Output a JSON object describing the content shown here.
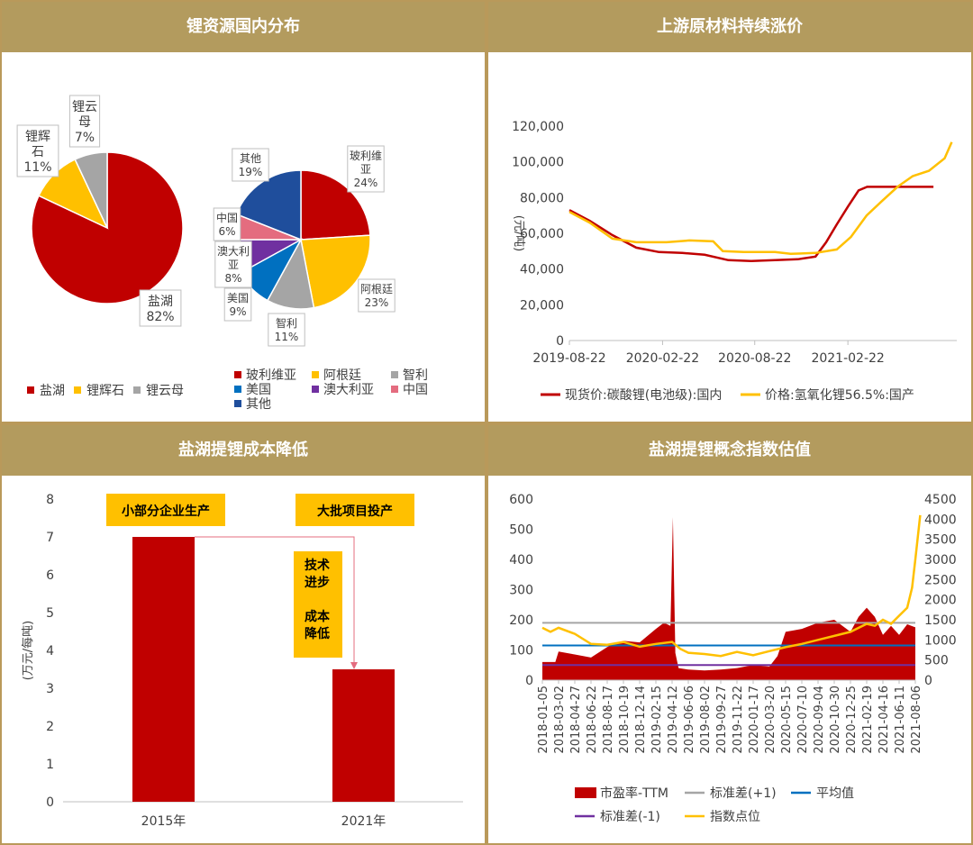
{
  "panels": {
    "p1_title": "锂资源国内分布",
    "p2_title": "上游原材料持续涨价",
    "p3_title": "盐湖提锂成本降低",
    "p4_title": "盐湖提锂概念指数估值"
  },
  "colors": {
    "header_bg": "#b39b5e",
    "red": "#c00000",
    "yellow": "#ffc000",
    "gray": "#a5a5a5",
    "blue": "#0070c0",
    "purple": "#7030a0",
    "pink": "#e46c7f",
    "navy": "#1f4e9c"
  },
  "chart_data": [
    {
      "type": "pie",
      "slices": [
        {
          "label": "盐湖",
          "value": 82,
          "pct": "82%"
        },
        {
          "label": "锂辉石",
          "value": 11,
          "pct": "11%"
        },
        {
          "label": "锂云母",
          "value": 7,
          "pct": "7%"
        }
      ],
      "legend": [
        "盐湖",
        "锂辉石",
        "锂云母"
      ]
    },
    {
      "type": "pie",
      "slices": [
        {
          "label": "玻利维亚",
          "value": 24,
          "pct": "24%"
        },
        {
          "label": "阿根廷",
          "value": 23,
          "pct": "23%"
        },
        {
          "label": "智利",
          "value": 11,
          "pct": "11%"
        },
        {
          "label": "美国",
          "value": 9,
          "pct": "9%"
        },
        {
          "label": "澳大利亚",
          "value": 8,
          "pct": "8%"
        },
        {
          "label": "中国",
          "value": 6,
          "pct": "6%"
        },
        {
          "label": "其他",
          "value": 19,
          "pct": "19%"
        }
      ],
      "legend": [
        "玻利维亚",
        "阿根廷",
        "智利",
        "美国",
        "澳大利亚",
        "中国",
        "其他"
      ]
    },
    {
      "type": "line",
      "ylabel": "(元/吨)",
      "ylim": [
        0,
        120000
      ],
      "yticks": [
        "0",
        "20,000",
        "40,000",
        "60,000",
        "80,000",
        "100,000",
        "120,000"
      ],
      "xticks": [
        "2019-08-22",
        "2020-02-22",
        "2020-08-22",
        "2021-02-22"
      ],
      "series": [
        {
          "name": "现货价:碳酸锂(电池级):国内",
          "points": [
            [
              "2019-08-22",
              73000
            ],
            [
              "2019-10-01",
              67000
            ],
            [
              "2019-11-15",
              59000
            ],
            [
              "2020-01-01",
              52000
            ],
            [
              "2020-02-15",
              49500
            ],
            [
              "2020-04-01",
              49000
            ],
            [
              "2020-05-15",
              48000
            ],
            [
              "2020-07-01",
              45000
            ],
            [
              "2020-08-15",
              44500
            ],
            [
              "2020-10-01",
              45000
            ],
            [
              "2020-11-15",
              45500
            ],
            [
              "2020-12-20",
              47000
            ],
            [
              "2021-01-10",
              55000
            ],
            [
              "2021-01-31",
              65000
            ],
            [
              "2021-02-22",
              75000
            ],
            [
              "2021-03-15",
              84000
            ],
            [
              "2021-04-01",
              86000
            ],
            [
              "2021-05-15",
              86000
            ],
            [
              "2021-06-30",
              86000
            ],
            [
              "2021-08-10",
              86000
            ]
          ]
        },
        {
          "name": "价格:氢氧化锂56.5%:国产",
          "points": [
            [
              "2019-08-22",
              72000
            ],
            [
              "2019-10-01",
              66000
            ],
            [
              "2019-11-15",
              57000
            ],
            [
              "2020-01-01",
              55000
            ],
            [
              "2020-03-01",
              55000
            ],
            [
              "2020-04-15",
              56000
            ],
            [
              "2020-06-01",
              55500
            ],
            [
              "2020-06-20",
              50000
            ],
            [
              "2020-08-01",
              49500
            ],
            [
              "2020-10-01",
              49500
            ],
            [
              "2020-11-01",
              48500
            ],
            [
              "2020-12-20",
              49000
            ],
            [
              "2021-01-31",
              51000
            ],
            [
              "2021-02-28",
              58000
            ],
            [
              "2021-03-31",
              70000
            ],
            [
              "2021-04-30",
              78000
            ],
            [
              "2021-05-31",
              86000
            ],
            [
              "2021-06-30",
              92000
            ],
            [
              "2021-08-01",
              95000
            ],
            [
              "2021-09-01",
              102000
            ],
            [
              "2021-09-15",
              111000
            ]
          ]
        }
      ],
      "legend": [
        "现货价:碳酸锂(电池级):国内",
        "价格:氢氧化锂56.5%:国产"
      ]
    },
    {
      "type": "bar",
      "ylabel": "(万元/每吨)",
      "ylim": [
        0,
        8
      ],
      "categories": [
        "2015年",
        "2021年"
      ],
      "values": [
        7,
        3.5
      ],
      "yticks": [
        "0",
        "1",
        "2",
        "3",
        "4",
        "5",
        "6",
        "7",
        "8"
      ],
      "annotations": [
        "小部分企业生产",
        "大批项目投产",
        "技术\n进步\n\n成本\n降低"
      ]
    },
    {
      "type": "area",
      "y1lim": [
        0,
        600
      ],
      "y2lim": [
        0,
        4500
      ],
      "y1ticks": [
        "0",
        "100",
        "200",
        "300",
        "400",
        "500",
        "600"
      ],
      "y2ticks": [
        "0",
        "500",
        "1000",
        "1500",
        "2000",
        "2500",
        "3000",
        "3500",
        "4000",
        "4500"
      ],
      "xticks": [
        "2018-01-05",
        "2018-03-02",
        "2018-04-27",
        "2018-06-22",
        "2018-08-17",
        "2018-10-19",
        "2018-12-14",
        "2019-02-15",
        "2019-04-12",
        "2019-06-06",
        "2019-08-02",
        "2019-09-27",
        "2019-11-22",
        "2020-01-17",
        "2020-03-20",
        "2020-05-15",
        "2020-07-10",
        "2020-09-04",
        "2020-10-30",
        "2020-12-25",
        "2021-02-19",
        "2021-04-16",
        "2021-06-11",
        "2021-08-06"
      ],
      "pe_ttm": [
        [
          0,
          60
        ],
        [
          0.8,
          60
        ],
        [
          1,
          95
        ],
        [
          2,
          85
        ],
        [
          3,
          75
        ],
        [
          4,
          110
        ],
        [
          5,
          130
        ],
        [
          6,
          125
        ],
        [
          7,
          170
        ],
        [
          7.5,
          190
        ],
        [
          7.9,
          180
        ],
        [
          8.05,
          540
        ],
        [
          8.2,
          90
        ],
        [
          8.4,
          40
        ],
        [
          9,
          35
        ],
        [
          10,
          32
        ],
        [
          11,
          35
        ],
        [
          12,
          40
        ],
        [
          13,
          50
        ],
        [
          14,
          45
        ],
        [
          14.5,
          80
        ],
        [
          15,
          160
        ],
        [
          16,
          170
        ],
        [
          17,
          190
        ],
        [
          18,
          200
        ],
        [
          19,
          160
        ],
        [
          19.5,
          210
        ],
        [
          20,
          240
        ],
        [
          20.5,
          210
        ],
        [
          21,
          150
        ],
        [
          21.5,
          180
        ],
        [
          22,
          150
        ],
        [
          22.5,
          185
        ],
        [
          23,
          175
        ]
      ],
      "index_points": [
        [
          0,
          1300
        ],
        [
          0.5,
          1200
        ],
        [
          1,
          1300
        ],
        [
          2,
          1150
        ],
        [
          3,
          900
        ],
        [
          4,
          880
        ],
        [
          5,
          950
        ],
        [
          6,
          830
        ],
        [
          7,
          900
        ],
        [
          8,
          950
        ],
        [
          8.5,
          780
        ],
        [
          9,
          680
        ],
        [
          10,
          650
        ],
        [
          11,
          600
        ],
        [
          12,
          700
        ],
        [
          13,
          620
        ],
        [
          14,
          720
        ],
        [
          15,
          820
        ],
        [
          16,
          900
        ],
        [
          17,
          1000
        ],
        [
          18,
          1100
        ],
        [
          19,
          1200
        ],
        [
          20,
          1400
        ],
        [
          20.5,
          1350
        ],
        [
          21,
          1500
        ],
        [
          21.5,
          1400
        ],
        [
          22,
          1600
        ],
        [
          22.5,
          1800
        ],
        [
          22.8,
          2300
        ],
        [
          23,
          3000
        ],
        [
          23.3,
          4100
        ]
      ],
      "std_plus1": 190,
      "mean": 115,
      "std_minus1": 50,
      "legend": [
        "市盈率-TTM",
        "标准差(+1)",
        "平均值",
        "标准差(-1)",
        "指数点位"
      ]
    }
  ]
}
